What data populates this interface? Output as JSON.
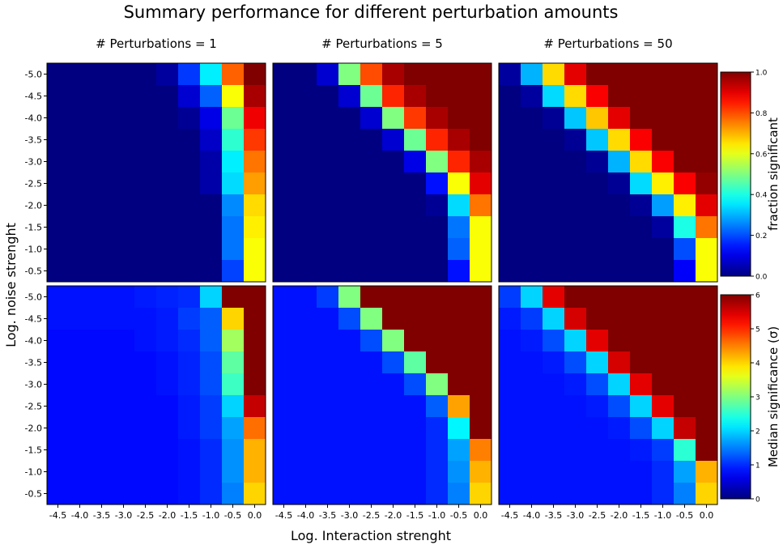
{
  "figure": {
    "title": "Summary performance for different perturbation amounts",
    "xlabel": "Log. Interaction strenght",
    "ylabel": "Log. noise strenght"
  },
  "chart_data": {
    "type": "heatmap",
    "colormap": "jet",
    "x_ticks": [
      "-4.5",
      "-4.0",
      "-3.5",
      "-3.0",
      "-2.5",
      "-2.0",
      "-1.5",
      "-1.0",
      "-0.5",
      "0.0"
    ],
    "y_ticks": [
      "-5.0",
      "-4.5",
      "-4.0",
      "-3.5",
      "-3.0",
      "-2.5",
      "-2.0",
      "-1.5",
      "-1.0",
      "-0.5"
    ],
    "columns": [
      "# Perturbations = 1",
      "# Perturbations = 5",
      "# Perturbations = 50"
    ],
    "rows": [
      {
        "metric": "fraction significant",
        "colorbar_label": "fraction significant",
        "vmin": 0,
        "vmax": 1,
        "colorbar_ticks": [
          "0.0",
          "0.2",
          "0.4",
          "0.6",
          "0.8",
          "1.0"
        ],
        "panels": [
          [
            [
              0,
              0,
              0,
              0,
              0,
              0.03,
              0.18,
              0.36,
              0.78,
              1.0
            ],
            [
              0,
              0,
              0,
              0,
              0,
              0,
              0.08,
              0.22,
              0.62,
              0.96
            ],
            [
              0,
              0,
              0,
              0,
              0,
              0,
              0.02,
              0.1,
              0.48,
              0.89
            ],
            [
              0,
              0,
              0,
              0,
              0,
              0,
              0,
              0.07,
              0.42,
              0.82
            ],
            [
              0,
              0,
              0,
              0,
              0,
              0,
              0,
              0.04,
              0.36,
              0.76
            ],
            [
              0,
              0,
              0,
              0,
              0,
              0,
              0,
              0.04,
              0.34,
              0.72
            ],
            [
              0,
              0,
              0,
              0,
              0,
              0,
              0,
              0,
              0.26,
              0.66
            ],
            [
              0,
              0,
              0,
              0,
              0,
              0,
              0,
              0,
              0.24,
              0.64
            ],
            [
              0,
              0,
              0,
              0,
              0,
              0,
              0,
              0,
              0.24,
              0.62
            ],
            [
              0,
              0,
              0,
              0,
              0,
              0,
              0,
              0,
              0.19,
              0.62
            ]
          ],
          [
            [
              0,
              0,
              0.08,
              0.5,
              0.8,
              0.96,
              1,
              1,
              1,
              1
            ],
            [
              0,
              0,
              0,
              0.08,
              0.48,
              0.84,
              0.96,
              1,
              1,
              1
            ],
            [
              0,
              0,
              0,
              0,
              0.08,
              0.5,
              0.82,
              0.96,
              1,
              1
            ],
            [
              0,
              0,
              0,
              0,
              0,
              0.08,
              0.48,
              0.84,
              0.96,
              1
            ],
            [
              0,
              0,
              0,
              0,
              0,
              0,
              0.1,
              0.5,
              0.84,
              0.96
            ],
            [
              0,
              0,
              0,
              0,
              0,
              0,
              0,
              0.14,
              0.62,
              0.9
            ],
            [
              0,
              0,
              0,
              0,
              0,
              0,
              0,
              0.02,
              0.34,
              0.76
            ],
            [
              0,
              0,
              0,
              0,
              0,
              0,
              0,
              0,
              0.24,
              0.62
            ],
            [
              0,
              0,
              0,
              0,
              0,
              0,
              0,
              0,
              0.22,
              0.62
            ],
            [
              0,
              0,
              0,
              0,
              0,
              0,
              0,
              0,
              0.14,
              0.62
            ]
          ],
          [
            [
              0.03,
              0.3,
              0.66,
              0.9,
              1,
              1,
              1,
              1,
              1,
              1
            ],
            [
              0,
              0.03,
              0.34,
              0.66,
              0.88,
              1,
              1,
              1,
              1,
              1
            ],
            [
              0,
              0,
              0.02,
              0.32,
              0.68,
              0.9,
              1,
              1,
              1,
              1
            ],
            [
              0,
              0,
              0,
              0.02,
              0.32,
              0.66,
              0.88,
              1,
              1,
              1
            ],
            [
              0,
              0,
              0,
              0,
              0.02,
              0.3,
              0.66,
              0.88,
              1,
              1
            ],
            [
              0,
              0,
              0,
              0,
              0,
              0.02,
              0.34,
              0.64,
              0.88,
              0.98
            ],
            [
              0,
              0,
              0,
              0,
              0,
              0,
              0.02,
              0.28,
              0.64,
              0.9
            ],
            [
              0,
              0,
              0,
              0,
              0,
              0,
              0,
              0.03,
              0.4,
              0.76
            ],
            [
              0,
              0,
              0,
              0,
              0,
              0,
              0,
              0,
              0.2,
              0.62
            ],
            [
              0,
              0,
              0,
              0,
              0,
              0,
              0,
              0,
              0.12,
              0.62
            ]
          ]
        ]
      },
      {
        "metric": "median significance",
        "colorbar_label": "Median significance (σ)",
        "vmin": 0,
        "vmax": 6,
        "colorbar_ticks": [
          "0",
          "1",
          "2",
          "3",
          "4",
          "5",
          "6"
        ],
        "panels": [
          [
            [
              0.85,
              0.85,
              0.85,
              0.85,
              0.9,
              0.95,
              1.0,
              2.0,
              6,
              6
            ],
            [
              0.85,
              0.85,
              0.85,
              0.85,
              0.85,
              0.9,
              1.1,
              1.3,
              4.0,
              6
            ],
            [
              0.8,
              0.8,
              0.8,
              0.8,
              0.85,
              0.9,
              1.0,
              1.3,
              3.2,
              6
            ],
            [
              0.8,
              0.8,
              0.8,
              0.8,
              0.8,
              0.85,
              0.95,
              1.2,
              2.8,
              6
            ],
            [
              0.8,
              0.8,
              0.8,
              0.8,
              0.8,
              0.85,
              0.95,
              1.2,
              2.6,
              6
            ],
            [
              0.8,
              0.8,
              0.8,
              0.8,
              0.8,
              0.8,
              0.9,
              1.1,
              2.0,
              5.6
            ],
            [
              0.8,
              0.8,
              0.8,
              0.8,
              0.8,
              0.8,
              0.9,
              1.1,
              1.7,
              4.6
            ],
            [
              0.8,
              0.8,
              0.8,
              0.8,
              0.8,
              0.8,
              0.85,
              1.0,
              1.6,
              4.2
            ],
            [
              0.8,
              0.8,
              0.8,
              0.8,
              0.8,
              0.8,
              0.85,
              1.0,
              1.6,
              4.2
            ],
            [
              0.8,
              0.8,
              0.8,
              0.8,
              0.8,
              0.8,
              0.85,
              1.0,
              1.5,
              4.0
            ]
          ],
          [
            [
              0.85,
              0.85,
              1.1,
              3.0,
              6,
              6,
              6,
              6,
              6,
              6
            ],
            [
              0.85,
              0.85,
              0.85,
              1.2,
              3.0,
              6,
              6,
              6,
              6,
              6
            ],
            [
              0.85,
              0.85,
              0.85,
              0.85,
              1.2,
              3.0,
              6,
              6,
              6,
              6
            ],
            [
              0.85,
              0.85,
              0.85,
              0.85,
              0.85,
              1.2,
              2.8,
              6,
              6,
              6
            ],
            [
              0.85,
              0.85,
              0.85,
              0.85,
              0.85,
              0.85,
              1.2,
              3.0,
              6,
              6
            ],
            [
              0.85,
              0.85,
              0.85,
              0.85,
              0.85,
              0.85,
              0.85,
              1.3,
              4.3,
              6
            ],
            [
              0.85,
              0.85,
              0.85,
              0.85,
              0.85,
              0.85,
              0.85,
              1.0,
              2.2,
              6
            ],
            [
              0.85,
              0.85,
              0.85,
              0.85,
              0.85,
              0.85,
              0.85,
              1.0,
              1.7,
              4.5
            ],
            [
              0.85,
              0.85,
              0.85,
              0.85,
              0.85,
              0.85,
              0.85,
              1.0,
              1.6,
              4.2
            ],
            [
              0.85,
              0.85,
              0.85,
              0.85,
              0.85,
              0.85,
              0.85,
              1.0,
              1.5,
              4.0
            ]
          ],
          [
            [
              1.1,
              2.0,
              5.4,
              6,
              6,
              6,
              6,
              6,
              6,
              6
            ],
            [
              0.9,
              1.1,
              2.0,
              5.5,
              6,
              6,
              6,
              6,
              6,
              6
            ],
            [
              0.85,
              0.9,
              1.2,
              2.0,
              5.4,
              6,
              6,
              6,
              6,
              6
            ],
            [
              0.85,
              0.85,
              0.9,
              1.2,
              2.0,
              5.5,
              6,
              6,
              6,
              6
            ],
            [
              0.85,
              0.85,
              0.85,
              0.9,
              1.2,
              2.0,
              5.4,
              6,
              6,
              6
            ],
            [
              0.85,
              0.85,
              0.85,
              0.85,
              0.9,
              1.2,
              2.0,
              5.4,
              6,
              6
            ],
            [
              0.85,
              0.85,
              0.85,
              0.85,
              0.85,
              0.9,
              1.2,
              2.0,
              5.6,
              6
            ],
            [
              0.85,
              0.85,
              0.85,
              0.85,
              0.85,
              0.85,
              0.9,
              1.1,
              2.5,
              6
            ],
            [
              0.85,
              0.85,
              0.85,
              0.85,
              0.85,
              0.85,
              0.85,
              1.0,
              1.7,
              4.2
            ],
            [
              0.85,
              0.85,
              0.85,
              0.85,
              0.85,
              0.85,
              0.85,
              1.0,
              1.5,
              4.0
            ]
          ]
        ]
      }
    ]
  }
}
